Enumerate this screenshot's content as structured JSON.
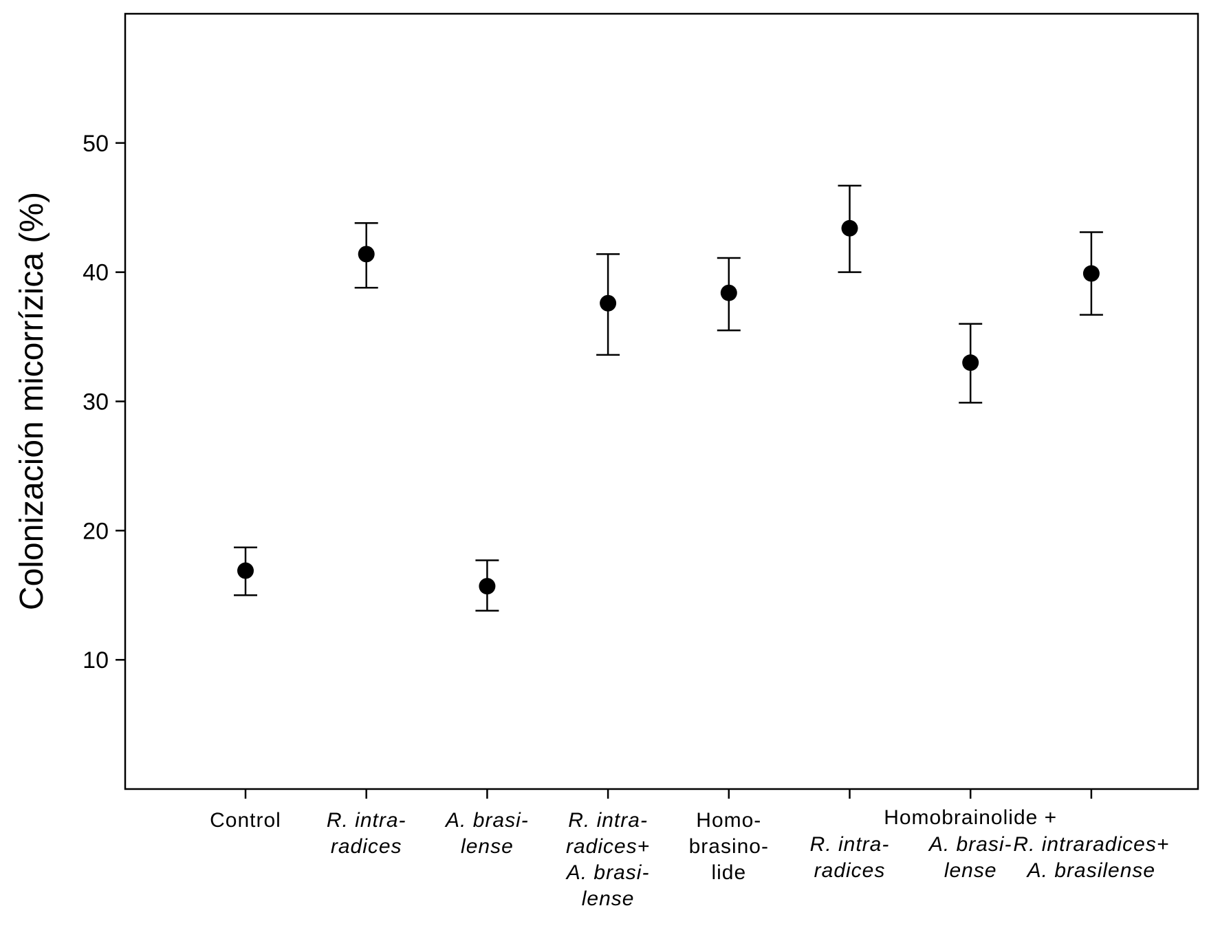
{
  "chart_data": {
    "type": "scatter",
    "ylabel": "Colonización micorrízica (%)",
    "xlabel": "",
    "ylim": [
      0,
      60
    ],
    "yticks": [
      10,
      20,
      30,
      40,
      50
    ],
    "grid": false,
    "categories": [
      {
        "lines": [
          {
            "t": "Control",
            "italic": false
          }
        ]
      },
      {
        "lines": [
          {
            "t": "R. intra-",
            "italic": true
          },
          {
            "t": "radices",
            "italic": true
          }
        ]
      },
      {
        "lines": [
          {
            "t": "A. brasi-",
            "italic": true
          },
          {
            "t": "lense",
            "italic": true
          }
        ]
      },
      {
        "lines": [
          {
            "t": "R. intra-",
            "italic": true
          },
          {
            "t": "radices+",
            "italic": true
          },
          {
            "t": "A. brasi-",
            "italic": true
          },
          {
            "t": "lense",
            "italic": true
          }
        ]
      },
      {
        "lines": [
          {
            "t": "Homo-",
            "italic": false
          },
          {
            "t": "brasino-",
            "italic": false
          },
          {
            "t": "lide",
            "italic": false
          }
        ]
      },
      {
        "lines": [
          {
            "t": "R. intra-",
            "italic": true
          },
          {
            "t": "radices",
            "italic": true
          }
        ]
      },
      {
        "lines": [
          {
            "t": "A. brasi-",
            "italic": true
          },
          {
            "t": "lense",
            "italic": true
          }
        ]
      },
      {
        "lines": [
          {
            "t": "R. intraradices+",
            "italic": true
          },
          {
            "t": "A. brasilense",
            "italic": true
          }
        ]
      }
    ],
    "group_label": "Homobrainolide +",
    "series": [
      {
        "values": [
          16.9,
          41.4,
          15.7,
          37.6,
          38.4,
          43.4,
          33.0,
          39.9
        ],
        "err_upper": [
          18.7,
          43.8,
          17.7,
          41.4,
          41.1,
          46.7,
          36.0,
          43.1
        ],
        "err_lower": [
          15.0,
          38.8,
          13.8,
          33.6,
          35.5,
          40.0,
          29.9,
          36.7
        ]
      }
    ]
  }
}
